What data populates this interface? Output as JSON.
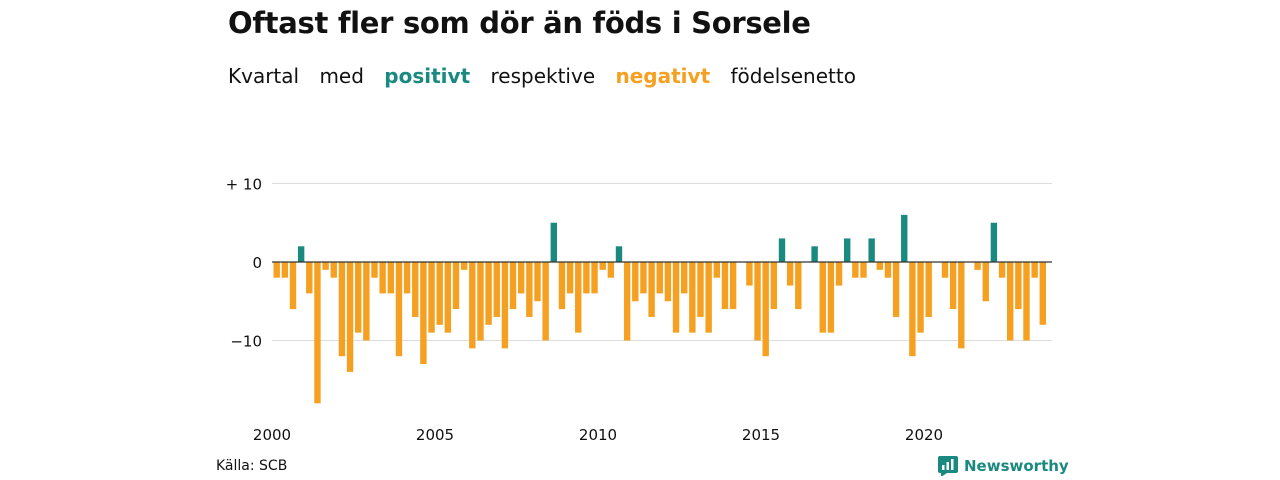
{
  "title": "Oftast fler som dör än föds i Sorsele",
  "subtitle": {
    "w1": "Kvartal",
    "w2": "med",
    "positive": "positivt",
    "w3": "respektive",
    "negative": "negativt",
    "w4": "födelsenetto"
  },
  "source": "Källa: SCB",
  "brand": "Newsworthy",
  "colors": {
    "positive": "#1a8a80",
    "negative": "#f5a020",
    "grid": "#dddddd",
    "axis": "#333333"
  },
  "chart_data": {
    "type": "bar",
    "x_start": 2000.0,
    "x_step": 0.25,
    "xticks": [
      2000,
      2005,
      2010,
      2015,
      2020
    ],
    "yticks": [
      10,
      0,
      -10
    ],
    "ytick_labels": [
      "+ 10",
      "0",
      "−10"
    ],
    "ylim": [
      -18,
      10
    ],
    "values": [
      -2,
      -2,
      -6,
      2,
      -4,
      -18,
      -1,
      -2,
      -12,
      -14,
      -9,
      -10,
      -2,
      -4,
      -4,
      -12,
      -4,
      -7,
      -13,
      -9,
      -8,
      -9,
      -6,
      -1,
      -11,
      -10,
      -8,
      -7,
      -11,
      -6,
      -4,
      -7,
      -5,
      -10,
      5,
      -6,
      -4,
      -9,
      -4,
      -4,
      -1,
      -2,
      2,
      -10,
      -5,
      -4,
      -7,
      -4,
      -5,
      -9,
      -4,
      -9,
      -7,
      -9,
      -2,
      -6,
      -6,
      0,
      -3,
      -10,
      -12,
      -6,
      3,
      -3,
      -6,
      0,
      2,
      -9,
      -9,
      -3,
      3,
      -2,
      -2,
      3,
      -1,
      -2,
      -7,
      6,
      -12,
      -9,
      -7,
      0,
      -2,
      -6,
      -11,
      0,
      -1,
      -5,
      5,
      -2,
      -10,
      -6,
      -10,
      -2,
      -8
    ]
  }
}
